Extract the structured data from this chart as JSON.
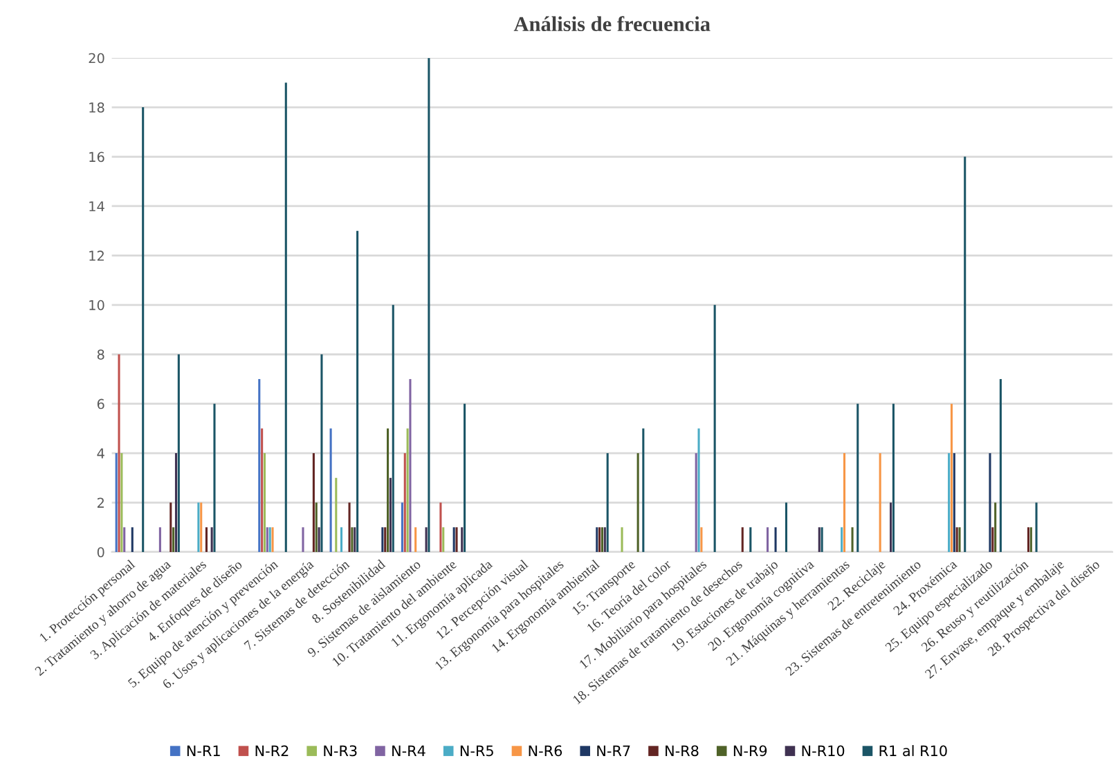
{
  "chart_data": {
    "type": "bar",
    "title": "Análisis de frecuencia",
    "categories": [
      "1. Protección personal",
      "2. Tratamiento y ahorro de agua",
      "3. Aplicación de materiales",
      "4. Enfoques de diseño",
      "5. Equipo de atención y prevención",
      "6. Usos y aplicaciones de la energía",
      "7. Sistemas de detección",
      "8. Sostenibilidad",
      "9. Sistemas de aislamiento",
      "10. Tratamiento del ambiente",
      "11. Ergonomía aplicada",
      "12. Percepción visual",
      "13. Ergonomía para hospitales",
      "14. Ergonomía ambiental",
      "15. Transporte",
      "16. Teoría del color",
      "17. Mobiliario para hospitales",
      "18. Sistemas de tratamiento de desechos",
      "19. Estaciones de trabajo",
      "20. Ergonomía cognitiva",
      "21. Máquinas y herramientas",
      "22. Reciclaje",
      "23. Sistemas de entretenimiento",
      "24. Proxémica",
      "25. Equipo especializado",
      "26. Reuso y reutilización",
      "27. Envase, empaque y embalaje",
      "28. Prospectiva del diseño"
    ],
    "series": [
      {
        "name": "N-R1",
        "color": "#4472c4",
        "values": [
          4,
          0,
          0,
          0,
          7,
          0,
          5,
          0,
          2,
          0,
          0,
          0,
          0,
          0,
          0,
          0,
          0,
          0,
          0,
          0,
          0,
          0,
          0,
          0,
          0,
          0,
          0,
          0
        ]
      },
      {
        "name": "N-R2",
        "color": "#c0504d",
        "values": [
          8,
          0,
          0,
          0,
          5,
          0,
          0,
          0,
          4,
          2,
          0,
          0,
          0,
          0,
          0,
          0,
          0,
          0,
          0,
          0,
          0,
          0,
          0,
          0,
          0,
          0,
          0,
          0
        ]
      },
      {
        "name": "N-R3",
        "color": "#9bbb59",
        "values": [
          4,
          0,
          0,
          0,
          4,
          0,
          3,
          0,
          5,
          1,
          0,
          0,
          0,
          0,
          1,
          0,
          0,
          0,
          0,
          0,
          0,
          0,
          0,
          0,
          0,
          0,
          0,
          0
        ]
      },
      {
        "name": "N-R4",
        "color": "#8064a2",
        "values": [
          1,
          1,
          0,
          0,
          1,
          1,
          0,
          0,
          7,
          0,
          0,
          0,
          0,
          0,
          0,
          0,
          4,
          0,
          1,
          0,
          0,
          0,
          0,
          0,
          0,
          0,
          0,
          0
        ]
      },
      {
        "name": "N-R5",
        "color": "#4bacc6",
        "values": [
          0,
          0,
          2,
          0,
          1,
          0,
          1,
          0,
          0,
          0,
          0,
          0,
          0,
          0,
          0,
          0,
          5,
          0,
          0,
          0,
          1,
          0,
          0,
          4,
          0,
          0,
          0,
          0
        ]
      },
      {
        "name": "N-R6",
        "color": "#f79646",
        "values": [
          0,
          0,
          2,
          0,
          1,
          0,
          0,
          0,
          1,
          0,
          0,
          0,
          0,
          0,
          0,
          0,
          1,
          0,
          0,
          0,
          4,
          4,
          0,
          6,
          0,
          0,
          0,
          0
        ]
      },
      {
        "name": "N-R7",
        "color": "#1f3864",
        "values": [
          1,
          0,
          0,
          0,
          0,
          0,
          0,
          1,
          0,
          1,
          0,
          0,
          0,
          1,
          0,
          0,
          0,
          0,
          1,
          0,
          0,
          0,
          0,
          4,
          4,
          0,
          0,
          0
        ]
      },
      {
        "name": "N-R8",
        "color": "#632523",
        "values": [
          0,
          2,
          1,
          0,
          0,
          4,
          2,
          1,
          0,
          1,
          0,
          0,
          0,
          1,
          0,
          0,
          0,
          1,
          0,
          0,
          0,
          0,
          0,
          1,
          1,
          1,
          0,
          0
        ]
      },
      {
        "name": "N-R9",
        "color": "#4f6228",
        "values": [
          0,
          1,
          0,
          0,
          0,
          2,
          1,
          5,
          0,
          0,
          0,
          0,
          0,
          1,
          4,
          0,
          0,
          0,
          0,
          0,
          1,
          0,
          0,
          1,
          2,
          1,
          0,
          0
        ]
      },
      {
        "name": "N-R10",
        "color": "#3f3151",
        "values": [
          0,
          4,
          1,
          0,
          0,
          1,
          1,
          3,
          1,
          1,
          0,
          0,
          0,
          1,
          0,
          0,
          0,
          0,
          0,
          1,
          0,
          2,
          0,
          0,
          0,
          0,
          0,
          0
        ]
      },
      {
        "name": "R1 al R10",
        "color": "#1b5566",
        "values": [
          18,
          8,
          6,
          0,
          19,
          8,
          13,
          10,
          20,
          6,
          0,
          0,
          0,
          4,
          5,
          0,
          10,
          1,
          2,
          1,
          6,
          6,
          0,
          16,
          7,
          2,
          0,
          0
        ]
      }
    ],
    "ylim": [
      0,
      20
    ],
    "yticks": [
      0,
      2,
      4,
      6,
      8,
      10,
      12,
      14,
      16,
      18,
      20
    ],
    "grid": "y",
    "legend": "bottom"
  }
}
